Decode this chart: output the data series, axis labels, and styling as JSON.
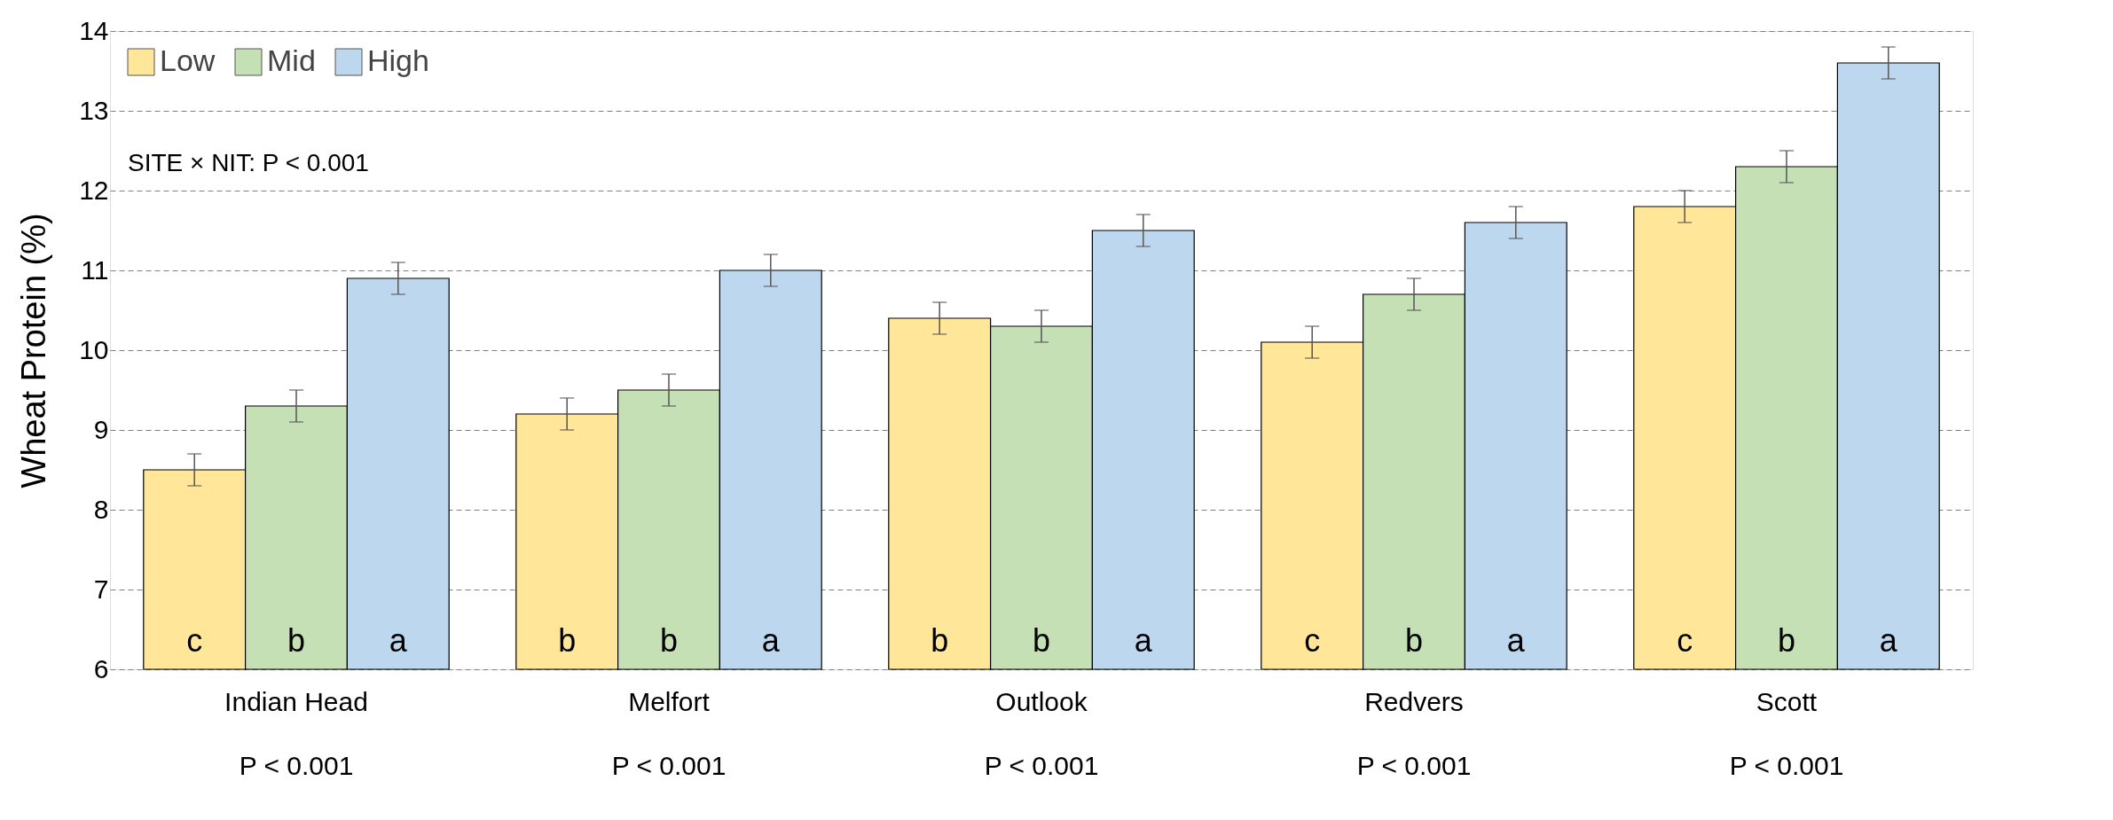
{
  "chart_data": {
    "type": "bar",
    "ylabel": "Wheat Protein (%)",
    "categories": [
      "Indian Head",
      "Melfort",
      "Outlook",
      "Redvers",
      "Scott"
    ],
    "series": [
      {
        "name": "Low",
        "color": "#ffe699",
        "values": [
          8.5,
          9.2,
          10.4,
          10.1,
          11.8
        ],
        "errors": [
          0.2,
          0.2,
          0.2,
          0.2,
          0.2
        ],
        "value_labels": [
          "c",
          "b",
          "b",
          "c",
          "c"
        ]
      },
      {
        "name": "Mid",
        "color": "#c5e0b4",
        "values": [
          9.3,
          9.5,
          10.3,
          10.7,
          12.3
        ],
        "errors": [
          0.2,
          0.2,
          0.2,
          0.2,
          0.2
        ],
        "value_labels": [
          "b",
          "b",
          "b",
          "b",
          "b"
        ]
      },
      {
        "name": "High",
        "color": "#bdd7ee",
        "values": [
          10.9,
          11.0,
          11.5,
          11.6,
          13.6
        ],
        "errors": [
          0.2,
          0.2,
          0.2,
          0.2,
          0.2
        ],
        "value_labels": [
          "a",
          "a",
          "a",
          "a",
          "a"
        ]
      }
    ],
    "ylim": [
      6,
      14
    ],
    "yticks": [
      6,
      7,
      8,
      9,
      10,
      11,
      12,
      13,
      14
    ],
    "grid": "y",
    "legend": "top left",
    "annotations": [
      "SITE × NIT: P < 0.001",
      "P < 0.001",
      "P < 0.001",
      "P < 0.001",
      "P < 0.001",
      "P < 0.001"
    ]
  }
}
